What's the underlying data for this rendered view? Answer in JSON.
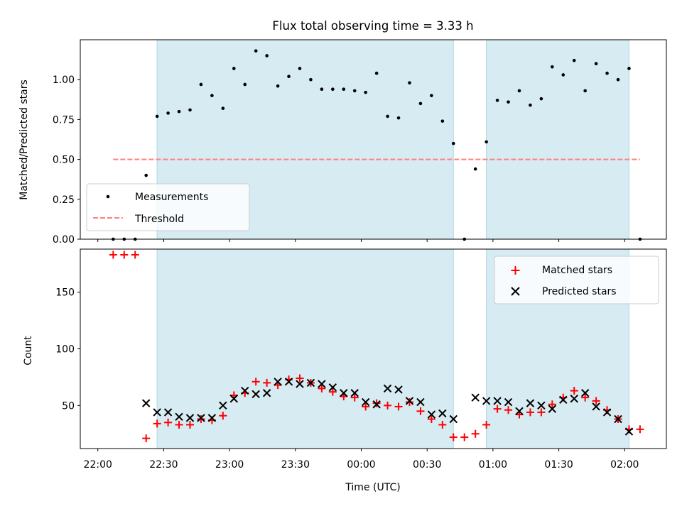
{
  "chart_data": [
    {
      "type": "scatter",
      "title": "Flux total observing time = 3.33 h",
      "xlabel": "",
      "ylabel": "Matched/Predicted stars",
      "xlim": [
        "21:52",
        "02:19"
      ],
      "ylim": [
        0,
        1.25
      ],
      "yticks": [
        0.0,
        0.25,
        0.5,
        0.75,
        1.0
      ],
      "ytick_labels": [
        "0.00",
        "0.25",
        "0.50",
        "0.75",
        "1.00"
      ],
      "shaded_spans": [
        [
          "22:27",
          "00:42"
        ],
        [
          "00:57",
          "02:02"
        ]
      ],
      "shade_color": "#add8e6",
      "legend_position": "lower-left",
      "series": [
        {
          "name": "Measurements",
          "marker": "dot",
          "color": "#000000",
          "points": [
            [
              "22:07",
              0.0
            ],
            [
              "22:12",
              0.0
            ],
            [
              "22:17",
              0.0
            ],
            [
              "22:22",
              0.4
            ],
            [
              "22:27",
              0.77
            ],
            [
              "22:32",
              0.79
            ],
            [
              "22:37",
              0.8
            ],
            [
              "22:42",
              0.81
            ],
            [
              "22:47",
              0.97
            ],
            [
              "22:52",
              0.9
            ],
            [
              "22:57",
              0.82
            ],
            [
              "23:02",
              1.07
            ],
            [
              "23:07",
              0.97
            ],
            [
              "23:12",
              1.18
            ],
            [
              "23:17",
              1.15
            ],
            [
              "23:22",
              0.96
            ],
            [
              "23:27",
              1.02
            ],
            [
              "23:32",
              1.07
            ],
            [
              "23:37",
              1.0
            ],
            [
              "23:42",
              0.94
            ],
            [
              "23:47",
              0.94
            ],
            [
              "23:52",
              0.94
            ],
            [
              "23:57",
              0.93
            ],
            [
              "00:02",
              0.92
            ],
            [
              "00:07",
              1.04
            ],
            [
              "00:12",
              0.77
            ],
            [
              "00:17",
              0.76
            ],
            [
              "00:22",
              0.98
            ],
            [
              "00:27",
              0.85
            ],
            [
              "00:32",
              0.9
            ],
            [
              "00:37",
              0.74
            ],
            [
              "00:42",
              0.6
            ],
            [
              "00:47",
              0.0
            ],
            [
              "00:52",
              0.44
            ],
            [
              "00:57",
              0.61
            ],
            [
              "01:02",
              0.87
            ],
            [
              "01:07",
              0.86
            ],
            [
              "01:12",
              0.93
            ],
            [
              "01:17",
              0.84
            ],
            [
              "01:22",
              0.88
            ],
            [
              "01:27",
              1.08
            ],
            [
              "01:32",
              1.03
            ],
            [
              "01:37",
              1.12
            ],
            [
              "01:42",
              0.93
            ],
            [
              "01:47",
              1.1
            ],
            [
              "01:52",
              1.04
            ],
            [
              "01:57",
              1.0
            ],
            [
              "02:02",
              1.07
            ],
            [
              "02:07",
              0.0
            ]
          ]
        },
        {
          "name": "Threshold",
          "style": "dashed-line",
          "color": "#ff7f7f",
          "points": [
            [
              "22:07",
              0.5
            ],
            [
              "02:07",
              0.5
            ]
          ]
        }
      ]
    },
    {
      "type": "scatter",
      "title": "",
      "xlabel": "Time (UTC)",
      "ylabel": "Count",
      "xlim": [
        "21:52",
        "02:19"
      ],
      "ylim": [
        12,
        188
      ],
      "xticks": [
        "22:00",
        "22:30",
        "23:00",
        "23:30",
        "00:00",
        "00:30",
        "01:00",
        "01:30",
        "02:00"
      ],
      "xtick_labels": [
        "22:00",
        "22:30",
        "23:00",
        "23:30",
        "00:00",
        "00:30",
        "01:00",
        "01:30",
        "02:00"
      ],
      "yticks": [
        50,
        100,
        150
      ],
      "ytick_labels": [
        "50",
        "100",
        "150"
      ],
      "shaded_spans": [
        [
          "22:27",
          "00:42"
        ],
        [
          "00:57",
          "02:02"
        ]
      ],
      "shade_color": "#add8e6",
      "legend_position": "top-right",
      "series": [
        {
          "name": "Matched stars",
          "marker": "plus",
          "color": "#ff0000",
          "points": [
            [
              "22:07",
              183
            ],
            [
              "22:12",
              183
            ],
            [
              "22:17",
              183
            ],
            [
              "22:22",
              21
            ],
            [
              "22:27",
              34
            ],
            [
              "22:32",
              35
            ],
            [
              "22:37",
              33
            ],
            [
              "22:42",
              33
            ],
            [
              "22:47",
              38
            ],
            [
              "22:52",
              37
            ],
            [
              "22:57",
              41
            ],
            [
              "23:02",
              59
            ],
            [
              "23:07",
              61
            ],
            [
              "23:12",
              71
            ],
            [
              "23:17",
              70
            ],
            [
              "23:22",
              68
            ],
            [
              "23:27",
              73
            ],
            [
              "23:32",
              74
            ],
            [
              "23:37",
              70
            ],
            [
              "23:42",
              65
            ],
            [
              "23:47",
              62
            ],
            [
              "23:52",
              58
            ],
            [
              "23:57",
              57
            ],
            [
              "00:02",
              49
            ],
            [
              "00:07",
              52
            ],
            [
              "00:12",
              50
            ],
            [
              "00:17",
              49
            ],
            [
              "00:22",
              53
            ],
            [
              "00:27",
              45
            ],
            [
              "00:32",
              38
            ],
            [
              "00:37",
              33
            ],
            [
              "00:42",
              22
            ],
            [
              "00:47",
              22
            ],
            [
              "00:52",
              25
            ],
            [
              "00:57",
              33
            ],
            [
              "01:02",
              47
            ],
            [
              "01:07",
              46
            ],
            [
              "01:12",
              42
            ],
            [
              "01:17",
              44
            ],
            [
              "01:22",
              44
            ],
            [
              "01:27",
              51
            ],
            [
              "01:32",
              57
            ],
            [
              "01:37",
              63
            ],
            [
              "01:42",
              57
            ],
            [
              "01:47",
              54
            ],
            [
              "01:52",
              46
            ],
            [
              "01:57",
              38
            ],
            [
              "02:02",
              29
            ],
            [
              "02:07",
              29
            ]
          ]
        },
        {
          "name": "Predicted stars",
          "marker": "x",
          "color": "#000000",
          "points": [
            [
              "22:22",
              52
            ],
            [
              "22:27",
              44
            ],
            [
              "22:32",
              44
            ],
            [
              "22:37",
              40
            ],
            [
              "22:42",
              39
            ],
            [
              "22:47",
              39
            ],
            [
              "22:52",
              39
            ],
            [
              "22:57",
              50
            ],
            [
              "23:02",
              56
            ],
            [
              "23:07",
              63
            ],
            [
              "23:12",
              60
            ],
            [
              "23:17",
              61
            ],
            [
              "23:22",
              71
            ],
            [
              "23:27",
              71
            ],
            [
              "23:32",
              69
            ],
            [
              "23:37",
              70
            ],
            [
              "23:42",
              69
            ],
            [
              "23:47",
              66
            ],
            [
              "23:52",
              61
            ],
            [
              "23:57",
              61
            ],
            [
              "00:02",
              53
            ],
            [
              "00:07",
              51
            ],
            [
              "00:12",
              65
            ],
            [
              "00:17",
              64
            ],
            [
              "00:22",
              54
            ],
            [
              "00:27",
              53
            ],
            [
              "00:32",
              42
            ],
            [
              "00:37",
              43
            ],
            [
              "00:42",
              38
            ],
            [
              "00:52",
              57
            ],
            [
              "00:57",
              54
            ],
            [
              "01:02",
              54
            ],
            [
              "01:07",
              53
            ],
            [
              "01:12",
              45
            ],
            [
              "01:17",
              52
            ],
            [
              "01:22",
              50
            ],
            [
              "01:27",
              47
            ],
            [
              "01:32",
              55
            ],
            [
              "01:37",
              56
            ],
            [
              "01:42",
              61
            ],
            [
              "01:47",
              49
            ],
            [
              "01:52",
              44
            ],
            [
              "01:57",
              38
            ],
            [
              "02:02",
              27
            ]
          ]
        }
      ]
    }
  ]
}
